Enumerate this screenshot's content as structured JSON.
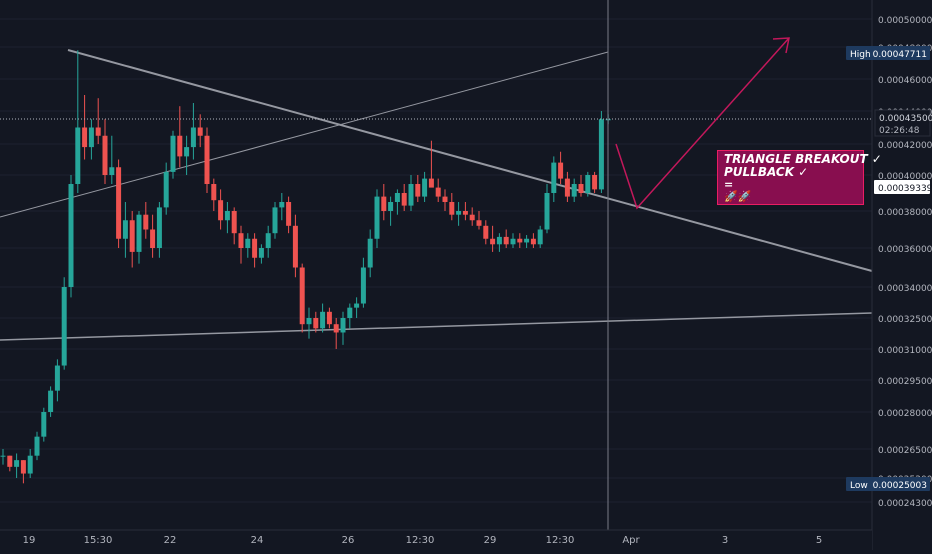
{
  "chart_data": {
    "type": "candlestick",
    "price_scale": {
      "ticks": [
        "0.00050000",
        "0.00048000",
        "0.00046000",
        "0.00044000",
        "0.00042000",
        "0.00040000",
        "0.00038000",
        "0.00036000",
        "0.00034000",
        "0.00032500",
        "0.00031000",
        "0.00029500",
        "0.00028000",
        "0.00026500",
        "0.00025200",
        "0.00024300"
      ],
      "high_label": "High",
      "high_value": "0.00047711",
      "current_price": "0.00043500",
      "countdown": "02:26:48",
      "last_close": "0.00039339",
      "low_label": "Low",
      "low_value": "0.00025003"
    },
    "x_ticks": [
      "19",
      "15:30",
      "22",
      "24",
      "26",
      "12:30",
      "29",
      "12:30",
      "Apr",
      "3",
      "5"
    ],
    "annotation": {
      "line1": "TRIANGLE BREAKOUT ✓",
      "line2": "PULLBACK ✓",
      "line3": "=",
      "line4": "🚀🚀"
    },
    "candles": [
      [
        0.000262,
        0.000265,
        0.000258,
        0.000262
      ],
      [
        0.000262,
        0.000262,
        0.000255,
        0.000257
      ],
      [
        0.000257,
        0.000263,
        0.000252,
        0.00026
      ],
      [
        0.00026,
        0.00026,
        0.00025,
        0.000254
      ],
      [
        0.000254,
        0.000265,
        0.000252,
        0.000262
      ],
      [
        0.000262,
        0.000272,
        0.00026,
        0.00027
      ],
      [
        0.00027,
        0.000282,
        0.000268,
        0.00028
      ],
      [
        0.00028,
        0.000292,
        0.000278,
        0.00029
      ],
      [
        0.00029,
        0.000305,
        0.000285,
        0.000302
      ],
      [
        0.000302,
        0.000345,
        0.0003,
        0.00034
      ],
      [
        0.00034,
        0.0004,
        0.000335,
        0.000395
      ],
      [
        0.000395,
        0.000478,
        0.00039,
        0.00043
      ],
      [
        0.00043,
        0.00045,
        0.00041,
        0.000418
      ],
      [
        0.000418,
        0.000435,
        0.00041,
        0.00043
      ],
      [
        0.00043,
        0.000448,
        0.00042,
        0.000425
      ],
      [
        0.000425,
        0.000435,
        0.000395,
        0.0004
      ],
      [
        0.0004,
        0.000425,
        0.000395,
        0.000405
      ],
      [
        0.000405,
        0.00041,
        0.00036,
        0.000365
      ],
      [
        0.000365,
        0.000385,
        0.000355,
        0.000375
      ],
      [
        0.000375,
        0.00038,
        0.00035,
        0.000358
      ],
      [
        0.000358,
        0.00038,
        0.000352,
        0.000378
      ],
      [
        0.000378,
        0.000385,
        0.000365,
        0.00037
      ],
      [
        0.00037,
        0.000378,
        0.000355,
        0.00036
      ],
      [
        0.00036,
        0.000385,
        0.000355,
        0.000382
      ],
      [
        0.000382,
        0.000408,
        0.000378,
        0.000402
      ],
      [
        0.000402,
        0.000428,
        0.000398,
        0.000425
      ],
      [
        0.000425,
        0.000443,
        0.000405,
        0.000412
      ],
      [
        0.000412,
        0.000425,
        0.0004,
        0.000418
      ],
      [
        0.000418,
        0.000445,
        0.00041,
        0.00043
      ],
      [
        0.00043,
        0.000438,
        0.000418,
        0.000425
      ],
      [
        0.000425,
        0.00043,
        0.00039,
        0.000395
      ],
      [
        0.000395,
        0.000398,
        0.00038,
        0.000386
      ],
      [
        0.000386,
        0.000392,
        0.00037,
        0.000375
      ],
      [
        0.000375,
        0.000385,
        0.000368,
        0.00038
      ],
      [
        0.00038,
        0.000382,
        0.000362,
        0.000368
      ],
      [
        0.000368,
        0.000372,
        0.000352,
        0.00036
      ],
      [
        0.00036,
        0.000368,
        0.000355,
        0.000365
      ],
      [
        0.000365,
        0.000368,
        0.00035,
        0.000355
      ],
      [
        0.000355,
        0.000362,
        0.000352,
        0.00036
      ],
      [
        0.00036,
        0.000372,
        0.000355,
        0.000368
      ],
      [
        0.000368,
        0.000385,
        0.000365,
        0.000382
      ],
      [
        0.000382,
        0.00039,
        0.000375,
        0.000385
      ],
      [
        0.000385,
        0.000388,
        0.000368,
        0.000372
      ],
      [
        0.000372,
        0.000378,
        0.000345,
        0.00035
      ],
      [
        0.00035,
        0.000352,
        0.000318,
        0.000322
      ],
      [
        0.000322,
        0.00033,
        0.000315,
        0.000325
      ],
      [
        0.000325,
        0.000328,
        0.000318,
        0.00032
      ],
      [
        0.00032,
        0.000332,
        0.000318,
        0.000328
      ],
      [
        0.000328,
        0.00033,
        0.00032,
        0.000322
      ],
      [
        0.000322,
        0.000325,
        0.00031,
        0.000318
      ],
      [
        0.000318,
        0.000328,
        0.000312,
        0.000325
      ],
      [
        0.000325,
        0.000332,
        0.00032,
        0.00033
      ],
      [
        0.00033,
        0.000335,
        0.000325,
        0.000332
      ],
      [
        0.000332,
        0.000355,
        0.00033,
        0.00035
      ],
      [
        0.00035,
        0.00037,
        0.000345,
        0.000365
      ],
      [
        0.000365,
        0.000392,
        0.00036,
        0.000388
      ],
      [
        0.000388,
        0.000395,
        0.000375,
        0.00038
      ],
      [
        0.00038,
        0.000388,
        0.000372,
        0.000385
      ],
      [
        0.000385,
        0.000392,
        0.000378,
        0.00039
      ],
      [
        0.00039,
        0.000395,
        0.00038,
        0.000383
      ],
      [
        0.000383,
        0.0004,
        0.00038,
        0.000395
      ],
      [
        0.000395,
        0.0004,
        0.000385,
        0.000388
      ],
      [
        0.000388,
        0.000402,
        0.000385,
        0.000398
      ],
      [
        0.000398,
        0.000422,
        0.000395,
        0.000393
      ],
      [
        0.000393,
        0.000398,
        0.000385,
        0.000388
      ],
      [
        0.000388,
        0.000392,
        0.00038,
        0.000385
      ],
      [
        0.000385,
        0.00039,
        0.000375,
        0.000378
      ],
      [
        0.000378,
        0.000385,
        0.000372,
        0.00038
      ],
      [
        0.00038,
        0.000385,
        0.000375,
        0.000378
      ],
      [
        0.000378,
        0.000382,
        0.000372,
        0.000375
      ],
      [
        0.000375,
        0.00038,
        0.00037,
        0.000372
      ],
      [
        0.000372,
        0.000375,
        0.000362,
        0.000365
      ],
      [
        0.000365,
        0.000372,
        0.000358,
        0.000362
      ],
      [
        0.000362,
        0.000368,
        0.000358,
        0.000366
      ],
      [
        0.000366,
        0.00037,
        0.00036,
        0.000362
      ],
      [
        0.000362,
        0.000368,
        0.00036,
        0.000365
      ],
      [
        0.000365,
        0.000368,
        0.00036,
        0.000363
      ],
      [
        0.000363,
        0.000367,
        0.00036,
        0.000365
      ],
      [
        0.000365,
        0.000368,
        0.00036,
        0.000362
      ],
      [
        0.000362,
        0.000372,
        0.00036,
        0.00037
      ],
      [
        0.00037,
        0.000395,
        0.000368,
        0.00039
      ],
      [
        0.00039,
        0.000412,
        0.000385,
        0.000408
      ],
      [
        0.000408,
        0.000415,
        0.000395,
        0.000398
      ],
      [
        0.000398,
        0.000402,
        0.000385,
        0.000388
      ],
      [
        0.000388,
        0.000398,
        0.000385,
        0.000395
      ],
      [
        0.000395,
        0.0004,
        0.000388,
        0.00039
      ],
      [
        0.00039,
        0.000402,
        0.000388,
        0.0004
      ],
      [
        0.0004,
        0.000402,
        0.00039,
        0.000392
      ],
      [
        0.000392,
        0.00044,
        0.00039,
        0.000435
      ],
      [
        0.000435,
        0.000438,
        0.000432,
        0.000435
      ]
    ]
  }
}
